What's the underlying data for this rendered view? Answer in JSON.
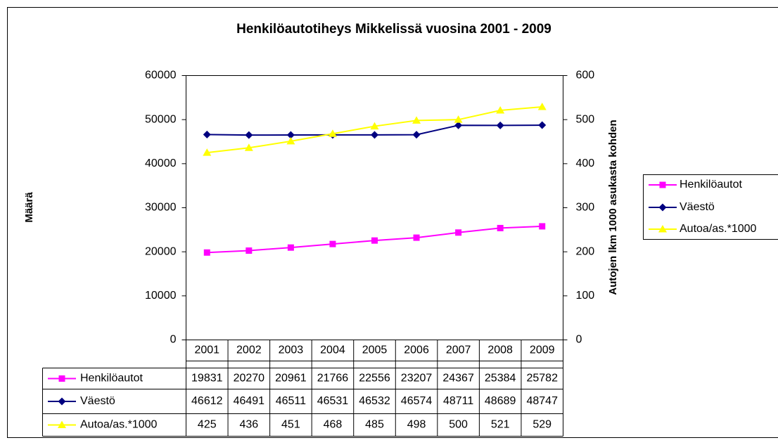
{
  "chart_data": {
    "type": "line",
    "title": "Henkilöautotiheys Mikkelissä vuosina 2001 - 2009",
    "y_label": "Määrä",
    "y2_label": "Autojen lkm 1000 asukasta kohden",
    "categories": [
      "2001",
      "2002",
      "2003",
      "2004",
      "2005",
      "2006",
      "2007",
      "2008",
      "2009"
    ],
    "series": [
      {
        "name": "Henkilöautot",
        "color": "#ff00ff",
        "marker": "square",
        "values": [
          19831,
          20270,
          20961,
          21766,
          22556,
          23207,
          24367,
          25384,
          25782
        ]
      },
      {
        "name": "Väestö",
        "color": "#000080",
        "marker": "diamond",
        "values": [
          46612,
          46491,
          46511,
          46531,
          46532,
          46574,
          48711,
          48689,
          48747
        ]
      },
      {
        "name": "Autoa/as.*1000",
        "color": "#ffff00",
        "marker": "triangle",
        "axis": "y2",
        "values": [
          425,
          436,
          451,
          468,
          485,
          498,
          500,
          521,
          529
        ]
      }
    ],
    "ylim": [
      0,
      60000
    ],
    "yticks": [
      0,
      10000,
      20000,
      30000,
      40000,
      50000,
      60000
    ],
    "y2lim": [
      0,
      600
    ],
    "y2ticks": [
      0,
      100,
      200,
      300,
      400,
      500,
      600
    ],
    "legend": "right"
  }
}
